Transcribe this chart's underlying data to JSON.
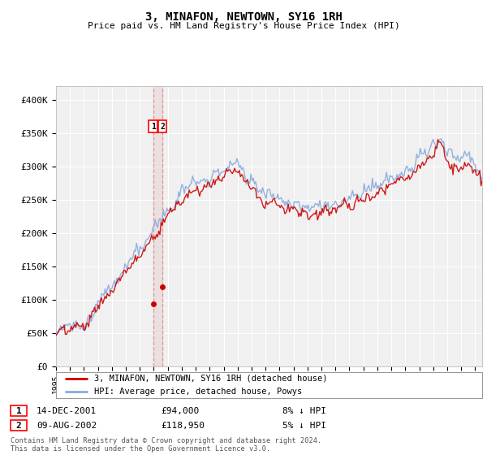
{
  "title": "3, MINAFON, NEWTOWN, SY16 1RH",
  "subtitle": "Price paid vs. HM Land Registry's House Price Index (HPI)",
  "ylim": [
    0,
    420000
  ],
  "yticks": [
    0,
    50000,
    100000,
    150000,
    200000,
    250000,
    300000,
    350000,
    400000
  ],
  "ytick_labels": [
    "£0",
    "£50K",
    "£100K",
    "£150K",
    "£200K",
    "£250K",
    "£300K",
    "£350K",
    "£400K"
  ],
  "background_color": "#ffffff",
  "plot_bg_color": "#f0f0f0",
  "grid_color": "#ffffff",
  "hpi_color": "#88aadd",
  "price_color": "#cc0000",
  "annotation1_date": "14-DEC-2001",
  "annotation1_price": "£94,000",
  "annotation1_hpi": "8% ↓ HPI",
  "annotation2_date": "09-AUG-2002",
  "annotation2_price": "£118,950",
  "annotation2_hpi": "5% ↓ HPI",
  "purchase1_x": 2001.96,
  "purchase1_y": 94000,
  "purchase2_x": 2002.61,
  "purchase2_y": 118950,
  "legend_label1": "3, MINAFON, NEWTOWN, SY16 1RH (detached house)",
  "legend_label2": "HPI: Average price, detached house, Powys",
  "footer": "Contains HM Land Registry data © Crown copyright and database right 2024.\nThis data is licensed under the Open Government Licence v3.0.",
  "xmin": 1995.0,
  "xmax": 2025.5
}
